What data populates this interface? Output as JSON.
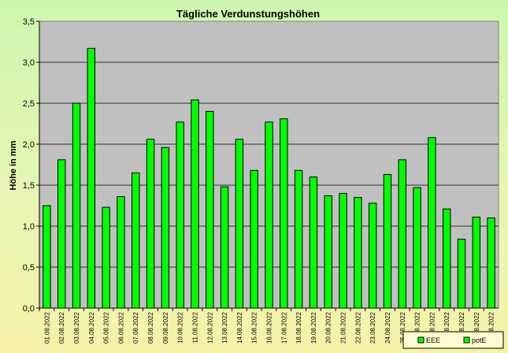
{
  "chart_data": {
    "type": "bar",
    "title": "Tägliche Verdunstungshöhen",
    "xlabel": "",
    "ylabel": "Höhe in mm",
    "ylim": [
      0,
      3.5
    ],
    "y_ticks": [
      "0,0",
      "0,5",
      "1,0",
      "1,5",
      "2,0",
      "2,5",
      "3,0",
      "3,5"
    ],
    "grid": true,
    "legend_position": "bottom-right",
    "categories": [
      "01.08.2022",
      "02.08.2022",
      "03.08.2022",
      "04.08.2022",
      "05.08.2022",
      "06.08.2022",
      "07.08.2022",
      "08.08.2022",
      "09.08.2022",
      "10.08.2022",
      "11.08.2022",
      "12.08.2022",
      "13.08.2022",
      "14.08.2022",
      "15.08.2022",
      "16.08.2022",
      "17.08.2022",
      "18.08.2022",
      "19.08.2022",
      "20.08.2022",
      "21.08.2022",
      "22.08.2022",
      "23.08.2022",
      "24.08.2022",
      "25.08.2022",
      "26.08.2022",
      "27.08.2022",
      "28.08.2022",
      "29.08.2022",
      "30.08.2022",
      "31.08.2022"
    ],
    "series": [
      {
        "name": "potE",
        "color": "#00ff00",
        "values": [
          1.25,
          1.81,
          2.5,
          3.17,
          1.23,
          1.36,
          1.65,
          2.06,
          1.96,
          2.27,
          2.54,
          2.4,
          1.48,
          2.06,
          1.68,
          2.27,
          2.31,
          1.68,
          1.6,
          1.37,
          1.4,
          1.35,
          1.28,
          1.63,
          1.81,
          1.47,
          2.08,
          1.21,
          0.84,
          1.11,
          1.1
        ]
      }
    ],
    "legend": [
      {
        "label": "EEE",
        "color": "#00ff00"
      },
      {
        "label": "potE",
        "color": "#00ff00"
      }
    ]
  }
}
